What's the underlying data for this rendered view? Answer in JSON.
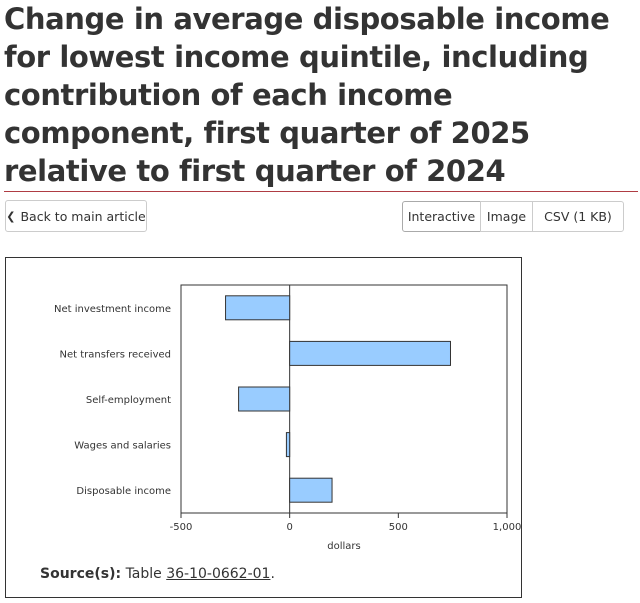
{
  "title": "Change in average disposable income for lowest income quintile, including contribution of each income component, first quarter of 2025 relative to first quarter of 2024",
  "back_button": {
    "label": "Back to main article",
    "icon": "chevron-left-icon"
  },
  "format_buttons": {
    "interactive": "Interactive",
    "image": "Image",
    "csv": "CSV (1 KB)"
  },
  "source": {
    "label": "Source(s):",
    "prefix": "Table",
    "table_id": "36-10-0662-01",
    "suffix": "."
  },
  "colors": {
    "bar_fill": "#99ccff",
    "bar_stroke": "#333333",
    "title_rule": "#af3c43"
  },
  "chart_data": {
    "type": "bar",
    "orientation": "horizontal",
    "categories": [
      "Net investment income",
      "Net transfers received",
      "Self-employment",
      "Wages and salaries",
      "Disposable income"
    ],
    "values": [
      -295,
      740,
      -235,
      -15,
      195
    ],
    "xlabel": "dollars",
    "ylabel": "",
    "xlim": [
      -500,
      1000
    ],
    "xticks": [
      -500,
      0,
      500,
      1000
    ],
    "xtick_labels": [
      "-500",
      "0",
      "500",
      "1,000"
    ],
    "grid": false,
    "legend": "none"
  }
}
